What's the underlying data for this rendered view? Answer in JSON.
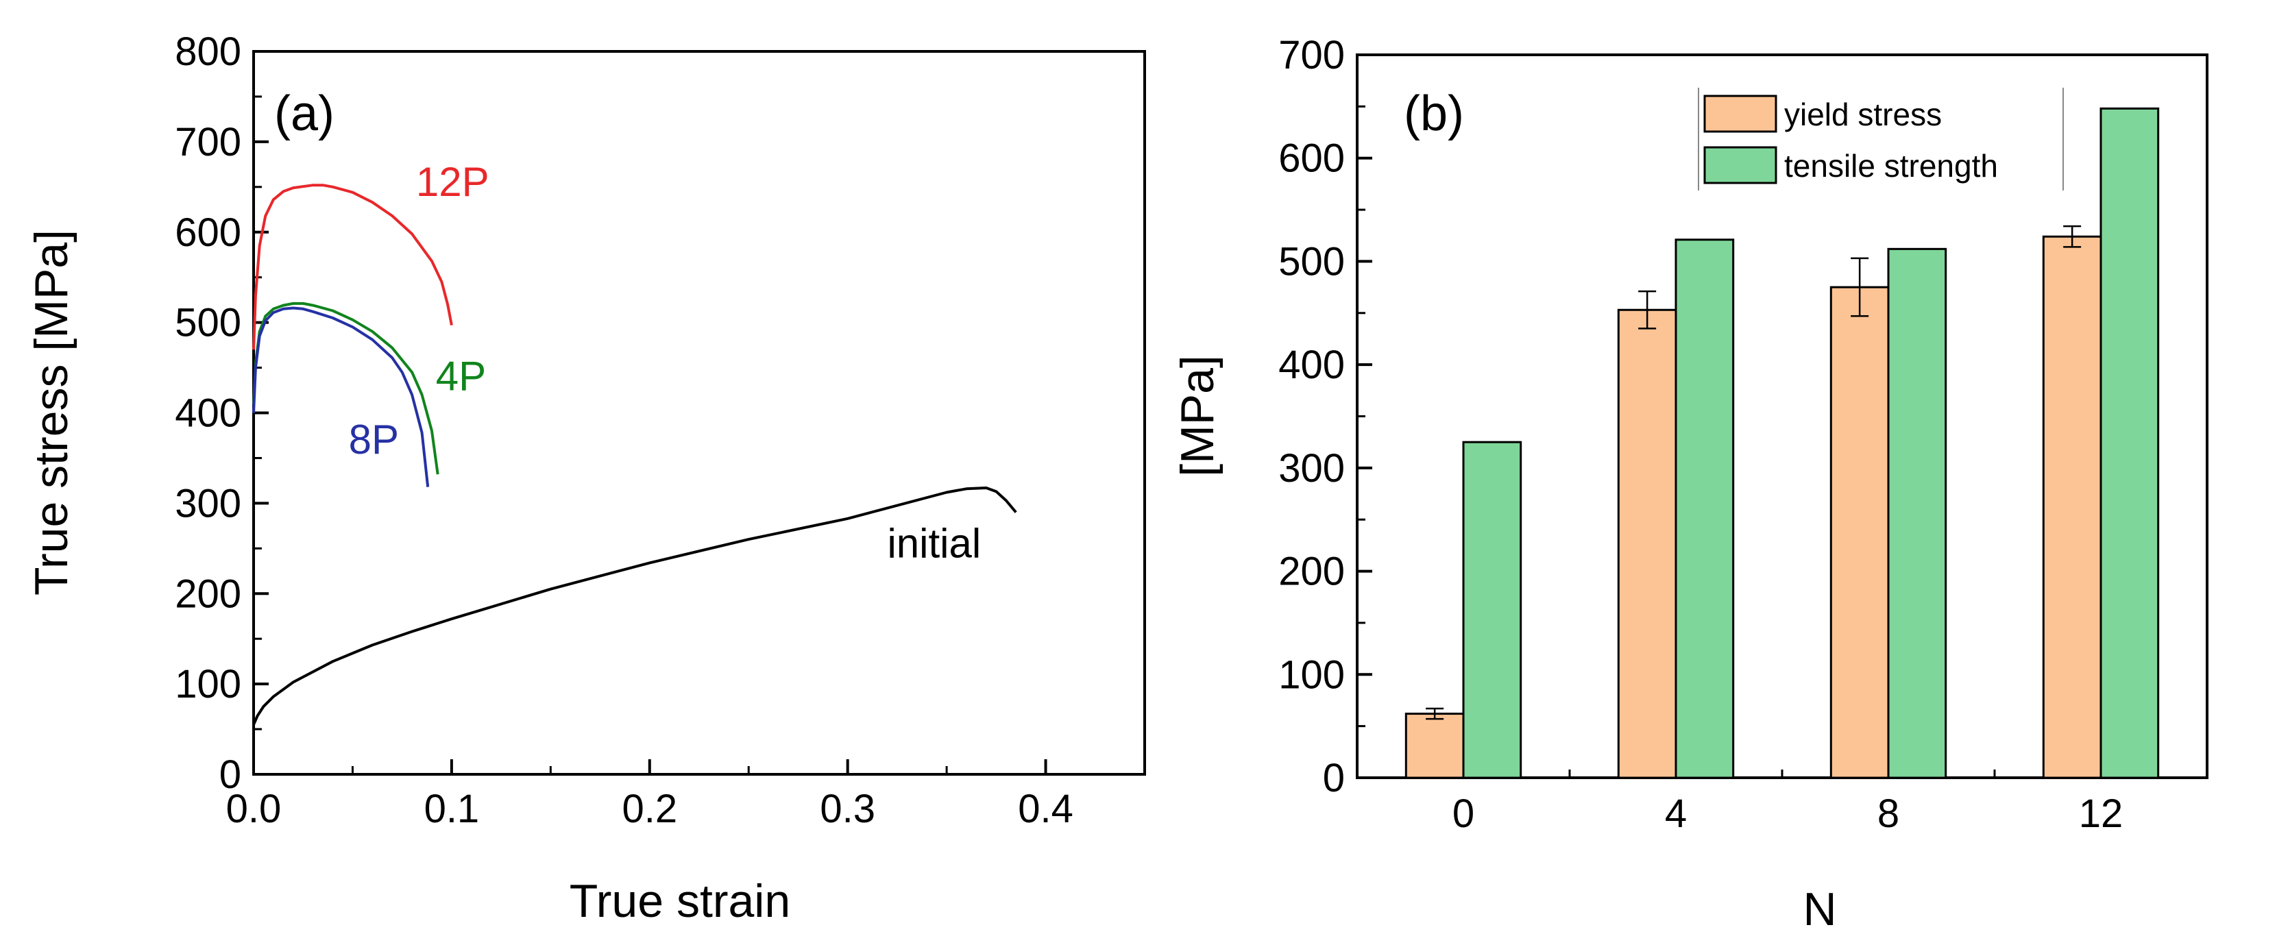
{
  "chart_data": [
    {
      "type": "line",
      "panel_label": "(a)",
      "xlabel": "True strain",
      "ylabel": "True stress [MPa]",
      "xlim": [
        0.0,
        0.45
      ],
      "ylim": [
        0,
        800
      ],
      "xticks": [
        0.0,
        0.1,
        0.2,
        0.3,
        0.4
      ],
      "xtick_labels": [
        "0.0",
        "0.1",
        "0.2",
        "0.3",
        "0.4"
      ],
      "yticks": [
        0,
        100,
        200,
        300,
        400,
        500,
        600,
        700,
        800
      ],
      "ytick_labels": [
        "0",
        "100",
        "200",
        "300",
        "400",
        "500",
        "600",
        "700",
        "800"
      ],
      "grid": false,
      "series": [
        {
          "name": "12P",
          "color": "#e8282b",
          "x": [
            0,
            0.001,
            0.003,
            0.006,
            0.01,
            0.015,
            0.02,
            0.03,
            0.035,
            0.04,
            0.05,
            0.06,
            0.07,
            0.08,
            0.09,
            0.095,
            0.098,
            0.1
          ],
          "y": [
            470,
            530,
            585,
            618,
            636,
            645,
            649,
            652,
            652,
            650,
            644,
            633,
            618,
            598,
            568,
            545,
            520,
            497
          ]
        },
        {
          "name": "4P",
          "color": "#11841d",
          "x": [
            0,
            0.001,
            0.003,
            0.006,
            0.01,
            0.015,
            0.02,
            0.025,
            0.03,
            0.04,
            0.05,
            0.06,
            0.07,
            0.08,
            0.085,
            0.09,
            0.093
          ],
          "y": [
            410,
            455,
            490,
            507,
            515,
            519,
            521,
            521,
            519,
            513,
            503,
            490,
            472,
            445,
            420,
            380,
            332
          ]
        },
        {
          "name": "8P",
          "color": "#2631a4",
          "x": [
            0,
            0.001,
            0.003,
            0.006,
            0.01,
            0.015,
            0.02,
            0.025,
            0.03,
            0.04,
            0.05,
            0.06,
            0.07,
            0.075,
            0.08,
            0.085,
            0.088
          ],
          "y": [
            400,
            450,
            485,
            502,
            511,
            515,
            516,
            515,
            512,
            505,
            495,
            481,
            461,
            445,
            420,
            378,
            318
          ]
        },
        {
          "name": "initial",
          "color": "#000000",
          "x": [
            0,
            0.002,
            0.005,
            0.01,
            0.02,
            0.04,
            0.06,
            0.08,
            0.1,
            0.15,
            0.2,
            0.25,
            0.3,
            0.35,
            0.36,
            0.37,
            0.375,
            0.38,
            0.385
          ],
          "y": [
            55,
            65,
            75,
            86,
            102,
            125,
            143,
            158,
            172,
            205,
            234,
            260,
            283,
            312,
            316,
            317,
            313,
            303,
            290
          ]
        }
      ],
      "annotations": [
        {
          "text": "12P",
          "x": 0.082,
          "y": 640,
          "color": "#e8282b"
        },
        {
          "text": "4P",
          "x": 0.092,
          "y": 425,
          "color": "#11841d"
        },
        {
          "text": "8P",
          "x": 0.048,
          "y": 355,
          "color": "#2631a4"
        },
        {
          "text": "initial",
          "x": 0.32,
          "y": 240,
          "color": "#000000"
        }
      ]
    },
    {
      "type": "bar",
      "panel_label": "(b)",
      "xlabel": "N",
      "ylabel": "[MPa]",
      "ylim": [
        0,
        700
      ],
      "categories": [
        "0",
        "4",
        "8",
        "12"
      ],
      "yticks": [
        0,
        100,
        200,
        300,
        400,
        500,
        600,
        700
      ],
      "ytick_labels": [
        "0",
        "100",
        "200",
        "300",
        "400",
        "500",
        "600",
        "700"
      ],
      "grid": false,
      "legend_position": "top",
      "series": [
        {
          "name": "yield stress",
          "color": "#fcc495",
          "values": [
            62,
            453,
            475,
            524
          ],
          "errors": [
            5,
            18,
            28,
            10
          ]
        },
        {
          "name": "tensile strength",
          "color": "#7fd69a",
          "values": [
            325,
            521,
            512,
            648
          ],
          "errors": [
            0,
            0,
            0,
            0
          ]
        }
      ]
    }
  ]
}
